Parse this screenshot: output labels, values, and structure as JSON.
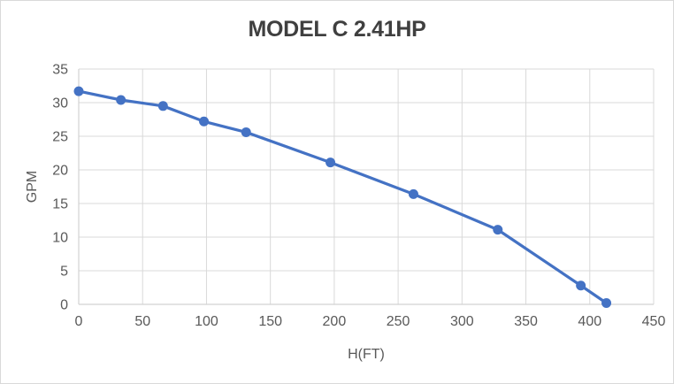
{
  "window": {
    "background": "#ffffff",
    "border_color": "#d9d9d9"
  },
  "chart_data": {
    "type": "line",
    "title": "MODEL C 2.41HP",
    "xlabel": "H(FT)",
    "ylabel": "GPM",
    "xlim": [
      0,
      450
    ],
    "ylim": [
      0,
      35
    ],
    "xticks": [
      0,
      50,
      100,
      150,
      200,
      250,
      300,
      350,
      400,
      450
    ],
    "yticks": [
      0,
      5,
      10,
      15,
      20,
      25,
      30,
      35
    ],
    "grid": true,
    "legend": false,
    "series": [
      {
        "name": "MODEL C 2.41HP",
        "x": [
          0,
          33,
          66,
          98,
          131,
          197,
          262,
          328,
          393,
          413
        ],
        "y": [
          31.7,
          30.4,
          29.5,
          27.2,
          25.6,
          21.1,
          16.4,
          11.1,
          2.8,
          0.2
        ],
        "color": "#4472c4",
        "marker": "circle",
        "line_width": 3.25,
        "marker_radius": 5.5
      }
    ],
    "colors": {
      "gridline": "#d9d9d9",
      "axis_line": "#d2d2d2",
      "title": "#3f3f3f",
      "tick_label": "#595959",
      "axis_title": "#595959"
    },
    "tick_font_size": 16
  }
}
